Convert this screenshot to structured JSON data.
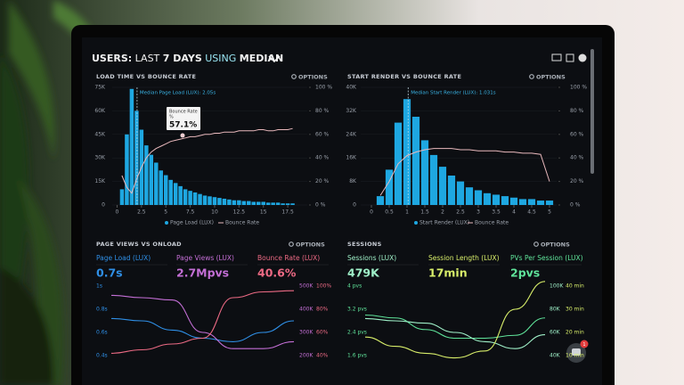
{
  "header": {
    "title_parts": [
      "USERS:",
      "LAST",
      "7 DAYS",
      "USING",
      "MEDIAN"
    ]
  },
  "chat_badge": "1",
  "top_panels": [
    {
      "title": "LOAD TIME VS BOUNCE RATE",
      "options": "OPTIONS",
      "chart": {
        "type": "bar",
        "xlim": [
          -0.5,
          19.5
        ],
        "xticks": [
          0,
          2.5,
          5,
          7.5,
          10,
          12.5,
          15,
          17.5
        ],
        "ylim": [
          0,
          75000
        ],
        "yticks": [
          {
            "value": 0,
            "label": "0"
          },
          {
            "value": 15000,
            "label": "15K"
          },
          {
            "value": 30000,
            "label": "30K"
          },
          {
            "value": 45000,
            "label": "45K"
          },
          {
            "value": 60000,
            "label": "60K"
          },
          {
            "value": 75000,
            "label": "75K"
          }
        ],
        "y2lim": [
          0,
          100
        ],
        "y2ticks": [
          {
            "value": 0,
            "label": "0 %"
          },
          {
            "value": 20,
            "label": "20 %"
          },
          {
            "value": 40,
            "label": "40 %"
          },
          {
            "value": 60,
            "label": "60 %"
          },
          {
            "value": 80,
            "label": "80 %"
          },
          {
            "value": 100,
            "label": "100 %"
          }
        ],
        "x": [
          0.5,
          1,
          1.5,
          2,
          2.5,
          3,
          3.5,
          4,
          4.5,
          5,
          5.5,
          6,
          6.5,
          7,
          7.5,
          8,
          8.5,
          9,
          9.5,
          10,
          10.5,
          11,
          11.5,
          12,
          12.5,
          13,
          13.5,
          14,
          14.5,
          15,
          15.5,
          16,
          16.5,
          17,
          17.5,
          18
        ],
        "series": [
          {
            "name": "Page Load (LUX)",
            "color": "#1ea7e1",
            "values": [
              10000,
              45000,
              74000,
              60000,
              48000,
              38000,
              32000,
              27000,
              22000,
              19000,
              16000,
              14000,
              12000,
              10000,
              9000,
              8000,
              7000,
              6000,
              5500,
              5000,
              4500,
              4000,
              3500,
              3000,
              3000,
              2500,
              2500,
              2000,
              2000,
              2000,
              1500,
              1500,
              1500,
              1000,
              1000,
              1000
            ]
          },
          {
            "name": "Bounce Rate",
            "color": "#e9b9bd",
            "axis": "y2",
            "values": [
              25,
              15,
              10,
              22,
              32,
              40,
              45,
              48,
              50,
              52,
              54,
              55,
              56,
              57,
              58,
              58,
              59,
              60,
              60,
              61,
              61,
              62,
              62,
              62,
              63,
              63,
              63,
              63,
              64,
              64,
              63,
              63,
              64,
              64,
              64,
              65
            ]
          }
        ],
        "median": {
          "value": 2.05,
          "label": "Median Page Load (LUX): 2.05s"
        },
        "tooltip": {
          "title": "Bounce Rate",
          "unit": "%",
          "label": "57.1%"
        }
      }
    },
    {
      "title": "START RENDER VS BOUNCE RATE",
      "options": "OPTIONS",
      "chart": {
        "type": "bar",
        "xlim": [
          -0.3,
          5.2
        ],
        "xticks": [
          0,
          0.5,
          1,
          1.5,
          2,
          2.5,
          3,
          3.5,
          4,
          4.5,
          5
        ],
        "ylim": [
          0,
          40000
        ],
        "yticks": [
          {
            "value": 0,
            "label": "0"
          },
          {
            "value": 8000,
            "label": "8K"
          },
          {
            "value": 16000,
            "label": "16K"
          },
          {
            "value": 24000,
            "label": "24K"
          },
          {
            "value": 32000,
            "label": "32K"
          },
          {
            "value": 40000,
            "label": "40K"
          }
        ],
        "y2lim": [
          0,
          100
        ],
        "y2ticks": [
          {
            "value": 0,
            "label": "0 %"
          },
          {
            "value": 20,
            "label": "20 %"
          },
          {
            "value": 40,
            "label": "40 %"
          },
          {
            "value": 60,
            "label": "60 %"
          },
          {
            "value": 80,
            "label": "80 %"
          },
          {
            "value": 100,
            "label": "100 %"
          }
        ],
        "x": [
          0.25,
          0.5,
          0.75,
          1,
          1.25,
          1.5,
          1.75,
          2,
          2.25,
          2.5,
          2.75,
          3,
          3.25,
          3.5,
          3.75,
          4,
          4.25,
          4.5,
          4.75,
          5
        ],
        "series": [
          {
            "name": "Start Render (LUX)",
            "color": "#1ea7e1",
            "values": [
              3000,
              12000,
              28000,
              36000,
              30000,
              22000,
              17000,
              13000,
              10000,
              8000,
              6000,
              5000,
              4000,
              3500,
              3000,
              2500,
              2000,
              2000,
              1500,
              1500
            ]
          },
          {
            "name": "Bounce Rate",
            "color": "#e9b9bd",
            "axis": "y2",
            "values": [
              8,
              20,
              35,
              42,
              45,
              47,
              48,
              48,
              48,
              47,
              47,
              46,
              46,
              46,
              45,
              45,
              44,
              44,
              43,
              20
            ]
          }
        ],
        "median": {
          "value": 1.031,
          "label": "Median Start Render (LUX): 1.031s"
        }
      }
    }
  ],
  "bottom_panels": [
    {
      "title": "PAGE VIEWS VS ONLOAD",
      "options": "OPTIONS",
      "kpis": [
        {
          "label": "Page Load (LUX)",
          "value": "0.7s",
          "color": "#2f8fe6"
        },
        {
          "label": "Page Views (LUX)",
          "value": "2.7Mpvs",
          "color": "#c46fd6"
        },
        {
          "label": "Bounce Rate (LUX)",
          "value": "40.6%",
          "color": "#ec6a84"
        }
      ],
      "chart": {
        "type": "line",
        "ylim": [
          0.4,
          1
        ],
        "yticks": [
          {
            "value": 1,
            "label": "1s"
          },
          {
            "value": 0.8,
            "label": "0.8s"
          },
          {
            "value": 0.6,
            "label": "0.6s"
          },
          {
            "value": 0.4,
            "label": "0.4s"
          }
        ],
        "y2lim": [
          200000,
          500000
        ],
        "y2ticks": [
          {
            "value": 500000,
            "label": "500K"
          },
          {
            "value": 400000,
            "label": "400K"
          },
          {
            "value": 300000,
            "label": "300K"
          },
          {
            "value": 200000,
            "label": "200K"
          }
        ],
        "y3lim": [
          40,
          100
        ],
        "y3ticks": [
          {
            "value": 100,
            "label": "100%"
          },
          {
            "value": 80,
            "label": "80%"
          },
          {
            "value": 60,
            "label": "60%"
          },
          {
            "value": 40,
            "label": "40%"
          }
        ],
        "series": [
          {
            "color": "#2f8fe6",
            "axis": "y",
            "values": [
              0.72,
              0.7,
              0.62,
              0.55,
              0.52,
              0.6,
              0.7
            ]
          },
          {
            "color": "#c46fd6",
            "axis": "y2",
            "values": [
              460000,
              450000,
              440000,
              300000,
              230000,
              230000,
              260000
            ]
          },
          {
            "color": "#ec6a84",
            "axis": "y3",
            "values": [
              42,
              45,
              50,
              55,
              90,
              95,
              96
            ]
          }
        ]
      }
    },
    {
      "title": "SESSIONS",
      "options": "OPTIONS",
      "kpis": [
        {
          "label": "Sessions (LUX)",
          "value": "479K",
          "color": "#9ff0c8"
        },
        {
          "label": "Session Length (LUX)",
          "value": "17min",
          "color": "#d8ee6a"
        },
        {
          "label": "PVs Per Session (LUX)",
          "value": "2pvs",
          "color": "#5fe39a"
        }
      ],
      "chart": {
        "type": "line",
        "ylim": [
          1.6,
          4
        ],
        "yticks": [
          {
            "value": 4,
            "label": "4 pvs"
          },
          {
            "value": 3.2,
            "label": "3.2 pvs"
          },
          {
            "value": 2.4,
            "label": "2.4 pvs"
          },
          {
            "value": 1.6,
            "label": "1.6 pvs"
          }
        ],
        "y2lim": [
          40000,
          100000
        ],
        "y2ticks": [
          {
            "value": 100000,
            "label": "100K"
          },
          {
            "value": 80000,
            "label": "80K"
          },
          {
            "value": 60000,
            "label": "60K"
          },
          {
            "value": 40000,
            "label": "40K"
          }
        ],
        "y3lim": [
          10,
          40
        ],
        "y3ticks": [
          {
            "value": 40,
            "label": "40 min"
          },
          {
            "value": 30,
            "label": "30 min"
          },
          {
            "value": 20,
            "label": "20 min"
          },
          {
            "value": 10,
            "label": "10 min"
          }
        ],
        "series": [
          {
            "color": "#5fe39a",
            "axis": "y",
            "values": [
              3.0,
              2.9,
              2.5,
              2.2,
              2.2,
              2.3,
              2.9
            ]
          },
          {
            "color": "#9ff0c8",
            "axis": "y2",
            "values": [
              72000,
              70000,
              68000,
              60000,
              52000,
              46000,
              58000
            ]
          },
          {
            "color": "#d8ee6a",
            "axis": "y3",
            "values": [
              18,
              14,
              11,
              9,
              12,
              30,
              42
            ]
          }
        ]
      }
    }
  ]
}
